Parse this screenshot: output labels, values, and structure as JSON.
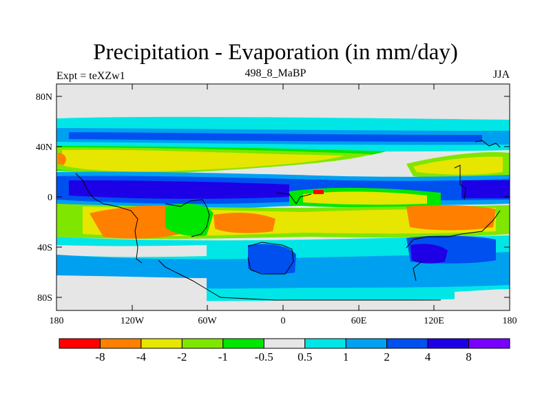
{
  "title": "Precipitation - Evaporation (in mm/day)",
  "left_label": "Expt = teXZw1",
  "center_label": "498_8_MaBP",
  "right_label": "JJA",
  "y_ticks": [
    "80N",
    "40N",
    "0",
    "40S",
    "80S"
  ],
  "x_ticks": [
    "180",
    "120W",
    "60W",
    "0",
    "60E",
    "120E",
    "180"
  ],
  "colorbar": {
    "colors": [
      "#ff0000",
      "#ff7f00",
      "#e6e600",
      "#7fe600",
      "#00e600",
      "#e6e6e6",
      "#00e6e6",
      "#00a0f0",
      "#0050f0",
      "#1e00e6",
      "#7800ff"
    ],
    "labels": [
      "-8",
      "-4",
      "-2",
      "-1",
      "-0.5",
      "0.5",
      "1",
      "2",
      "4",
      "8"
    ]
  }
}
